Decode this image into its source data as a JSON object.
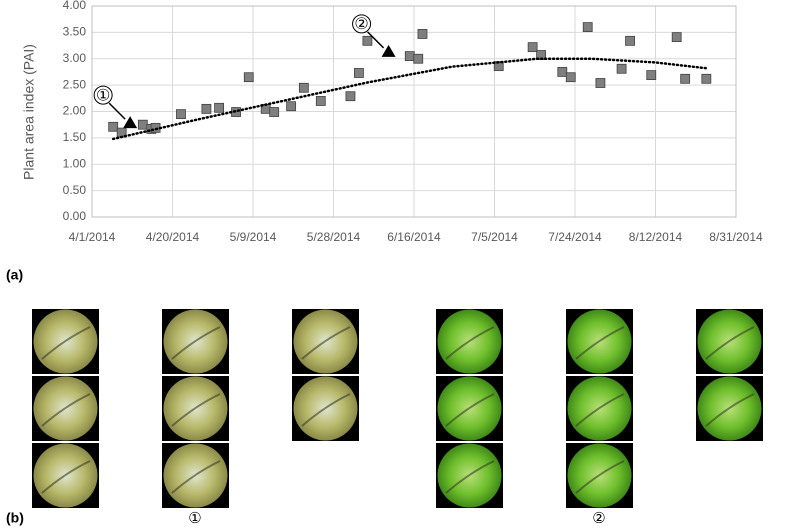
{
  "chart_data": {
    "type": "scatter",
    "y_label": "Plant area index (PAI)",
    "x": [
      "2014-04-06",
      "2014-04-08",
      "2014-04-13",
      "2014-04-15",
      "2014-04-16",
      "2014-04-22",
      "2014-04-28",
      "2014-05-01",
      "2014-05-05",
      "2014-05-08",
      "2014-05-12",
      "2014-05-14",
      "2014-05-18",
      "2014-05-21",
      "2014-05-25",
      "2014-06-01",
      "2014-06-03",
      "2014-06-05",
      "2014-06-15",
      "2014-06-17",
      "2014-06-18",
      "2014-07-06",
      "2014-07-14",
      "2014-07-16",
      "2014-07-21",
      "2014-07-23",
      "2014-07-27",
      "2014-07-30",
      "2014-08-04",
      "2014-08-06",
      "2014-08-11",
      "2014-08-17",
      "2014-08-19",
      "2014-08-24"
    ],
    "series": [
      {
        "color": "#7f7f7f",
        "marker": "square",
        "values": [
          1.71,
          1.6,
          1.75,
          1.67,
          1.69,
          1.95,
          2.05,
          2.07,
          1.99,
          2.65,
          2.05,
          1.99,
          2.1,
          2.45,
          2.2,
          2.29,
          2.73,
          3.34,
          3.05,
          3.0,
          3.47,
          2.86,
          3.22,
          3.07,
          2.75,
          2.65,
          3.6,
          2.54,
          2.81,
          3.34,
          2.69,
          3.41,
          2.62,
          2.62
        ]
      },
      {
        "color": "#000000",
        "marker": "triangle",
        "x": [
          "2014-04-10",
          "2014-06-10"
        ],
        "values": [
          1.78,
          3.13
        ],
        "annotations": [
          "①",
          "②"
        ]
      },
      {
        "color": "#000000",
        "marker": "dotted-line",
        "x": [
          "2014-04-06",
          "2014-04-26",
          "2014-05-16",
          "2014-06-05",
          "2014-06-25",
          "2014-07-15",
          "2014-07-28",
          "2014-08-12",
          "2014-08-24"
        ],
        "values": [
          1.48,
          1.85,
          2.2,
          2.55,
          2.85,
          3.0,
          3.0,
          2.93,
          2.82
        ]
      }
    ],
    "xlim": [
      "2014-04-01",
      "2014-08-31"
    ],
    "xticks": [
      {
        "value": "2014-04-01",
        "label": "4/1/2014"
      },
      {
        "value": "2014-04-20",
        "label": "4/20/2014"
      },
      {
        "value": "2014-05-09",
        "label": "5/9/2014"
      },
      {
        "value": "2014-05-28",
        "label": "5/28/2014"
      },
      {
        "value": "2014-06-16",
        "label": "6/16/2014"
      },
      {
        "value": "2014-07-05",
        "label": "7/5/2014"
      },
      {
        "value": "2014-07-24",
        "label": "7/24/2014"
      },
      {
        "value": "2014-08-12",
        "label": "8/12/2014"
      },
      {
        "value": "2014-08-31",
        "label": "8/31/2014"
      }
    ],
    "ylim": [
      0,
      4
    ],
    "yticks": [
      {
        "value": 0,
        "label": "0.00"
      },
      {
        "value": 0.5,
        "label": "0.50"
      },
      {
        "value": 1,
        "label": "1.00"
      },
      {
        "value": 1.5,
        "label": "1.50"
      },
      {
        "value": 2,
        "label": "2.00"
      },
      {
        "value": 2.5,
        "label": "2.50"
      },
      {
        "value": 3,
        "label": "3.00"
      },
      {
        "value": 3.5,
        "label": "3.50"
      },
      {
        "value": 4,
        "label": "4.00"
      }
    ],
    "grid": true
  },
  "panel_labels": [
    "(a)",
    "(b)"
  ],
  "image_captions": [
    "①",
    "②"
  ]
}
